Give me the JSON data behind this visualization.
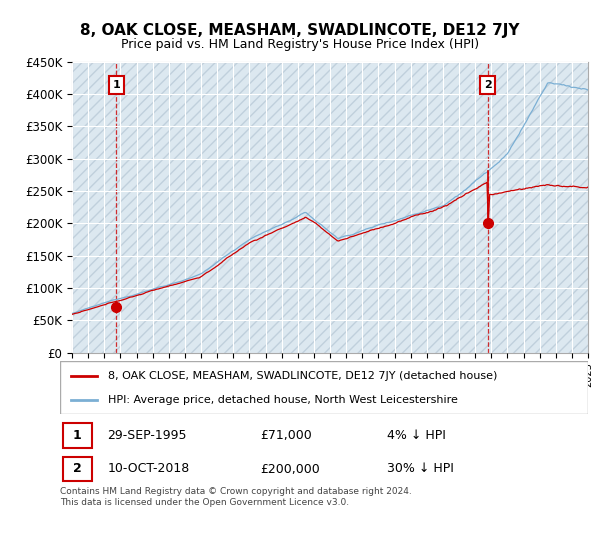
{
  "title": "8, OAK CLOSE, MEASHAM, SWADLINCOTE, DE12 7JY",
  "subtitle": "Price paid vs. HM Land Registry's House Price Index (HPI)",
  "ylim": [
    0,
    450000
  ],
  "yticks": [
    0,
    50000,
    100000,
    150000,
    200000,
    250000,
    300000,
    350000,
    400000,
    450000
  ],
  "ytick_labels": [
    "£0",
    "£50K",
    "£100K",
    "£150K",
    "£200K",
    "£250K",
    "£300K",
    "£350K",
    "£400K",
    "£450K"
  ],
  "hpi_color": "#7bafd4",
  "price_color": "#cc0000",
  "marker_color": "#cc0000",
  "grid_color": "#c8d8e8",
  "annotation_box_color": "#cc0000",
  "purchase1_year": 1995.75,
  "purchase1_price": 71000,
  "purchase1_label": "1",
  "purchase1_date": "29-SEP-1995",
  "purchase1_pct": "4% ↓ HPI",
  "purchase2_year": 2018.78,
  "purchase2_price": 200000,
  "purchase2_label": "2",
  "purchase2_date": "10-OCT-2018",
  "purchase2_pct": "30% ↓ HPI",
  "legend_entry1": "8, OAK CLOSE, MEASHAM, SWADLINCOTE, DE12 7JY (detached house)",
  "legend_entry2": "HPI: Average price, detached house, North West Leicestershire",
  "footnote": "Contains HM Land Registry data © Crown copyright and database right 2024.\nThis data is licensed under the Open Government Licence v3.0.",
  "xmin": 1993,
  "xmax": 2025
}
